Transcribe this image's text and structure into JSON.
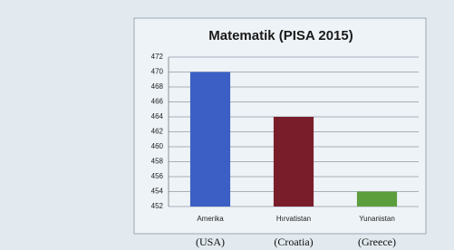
{
  "chart_data": {
    "type": "bar",
    "title": "Matematik (PISA 2015)",
    "categories": [
      "Amerika",
      "Hırvatistan",
      "Yunanistan"
    ],
    "country_labels": [
      "(USA)",
      "(Croatia)",
      "(Greece)"
    ],
    "values": [
      470,
      464,
      454
    ],
    "colors": [
      "#3b5fc4",
      "#7a1d2b",
      "#5c9e3c"
    ],
    "ylim": [
      452,
      472
    ],
    "yticks": [
      452,
      454,
      456,
      458,
      460,
      462,
      464,
      466,
      468,
      470,
      472
    ],
    "grid": true
  }
}
